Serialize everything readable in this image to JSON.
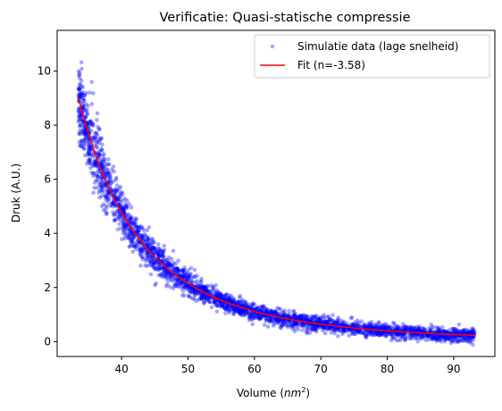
{
  "chart_data": {
    "type": "scatter",
    "title": "Verificatie: Quasi-statische compressie",
    "xlabel": "Volume",
    "xlabel_unit": "nm",
    "xlabel_unit_power": "2",
    "ylabel": "Druk (A.U.)",
    "xlim": [
      30.3,
      96.2
    ],
    "ylim": [
      -0.55,
      11.5
    ],
    "xticks": [
      40,
      50,
      60,
      70,
      80,
      90
    ],
    "yticks": [
      0,
      2,
      4,
      6,
      8,
      10
    ],
    "xtick_labels": [
      "40",
      "50",
      "60",
      "70",
      "80",
      "90"
    ],
    "ytick_labels": [
      "0",
      "2",
      "4",
      "6",
      "8",
      "10"
    ],
    "grid": false,
    "legend_position": "top-right",
    "series": [
      {
        "name": "Simulatie data (lage snelheid)",
        "kind": "scatter",
        "color": "#0000ff",
        "opacity": 0.35,
        "x_range": [
          33.5,
          93.2
        ],
        "count": 3000,
        "model": "power",
        "noise_rel": 0.09,
        "noise_abs": 0.12
      },
      {
        "name": "Fit (n=-3.58)",
        "kind": "line",
        "color": "#ff0000",
        "exponent": -3.58,
        "x": [
          33.5,
          35,
          37.5,
          40,
          42.5,
          45,
          50,
          55,
          60,
          65,
          70,
          75,
          80,
          85,
          90,
          93.2
        ],
        "y": [
          9.0,
          7.68,
          5.97,
          4.71,
          3.78,
          3.07,
          2.11,
          1.5,
          1.1,
          0.83,
          0.64,
          0.5,
          0.4,
          0.33,
          0.27,
          0.24
        ]
      }
    ]
  }
}
